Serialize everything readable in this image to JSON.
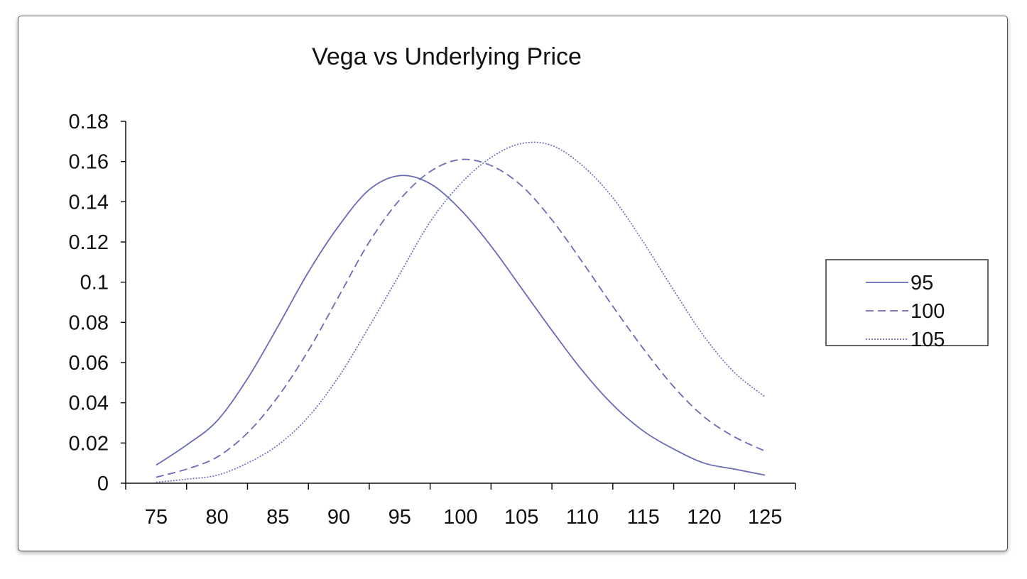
{
  "chart_data": {
    "type": "line",
    "title": "Vega vs Underlying Price",
    "xlabel": "",
    "ylabel": "",
    "xlim": [
      72.5,
      127.5
    ],
    "ylim": [
      0,
      0.18
    ],
    "x_ticks": [
      "75",
      "80",
      "85",
      "90",
      "95",
      "100",
      "105",
      "110",
      "115",
      "120",
      "125"
    ],
    "y_ticks": [
      "0",
      "0.02",
      "0.04",
      "0.06",
      "0.08",
      "0.1",
      "0.12",
      "0.14",
      "0.16",
      "0.18"
    ],
    "y_tick_values": [
      0,
      0.02,
      0.04,
      0.06,
      0.08,
      0.1,
      0.12,
      0.14,
      0.16,
      0.18
    ],
    "grid": false,
    "legend_position": "right",
    "x": [
      75,
      77.5,
      80,
      82.5,
      85,
      87.5,
      90,
      92.5,
      95,
      97.5,
      100,
      102.5,
      105,
      107.5,
      110,
      112.5,
      115,
      117.5,
      120,
      122.5,
      125
    ],
    "series": [
      {
        "name": "95",
        "style": "solid",
        "color": "#6a6ab8",
        "values": [
          0.009,
          0.019,
          0.031,
          0.052,
          0.078,
          0.105,
          0.128,
          0.146,
          0.153,
          0.149,
          0.136,
          0.118,
          0.097,
          0.076,
          0.056,
          0.039,
          0.026,
          0.017,
          0.01,
          0.007,
          0.004
        ]
      },
      {
        "name": "100",
        "style": "dashed",
        "color": "#6a6ab8",
        "values": [
          0.003,
          0.007,
          0.013,
          0.025,
          0.043,
          0.066,
          0.093,
          0.12,
          0.141,
          0.155,
          0.161,
          0.158,
          0.148,
          0.131,
          0.11,
          0.088,
          0.067,
          0.048,
          0.033,
          0.023,
          0.016
        ]
      },
      {
        "name": "105",
        "style": "dotted",
        "color": "#6a6ab8",
        "values": [
          0.0005,
          0.002,
          0.004,
          0.01,
          0.019,
          0.033,
          0.053,
          0.078,
          0.104,
          0.13,
          0.149,
          0.162,
          0.169,
          0.168,
          0.158,
          0.142,
          0.12,
          0.096,
          0.073,
          0.055,
          0.043
        ]
      }
    ]
  }
}
